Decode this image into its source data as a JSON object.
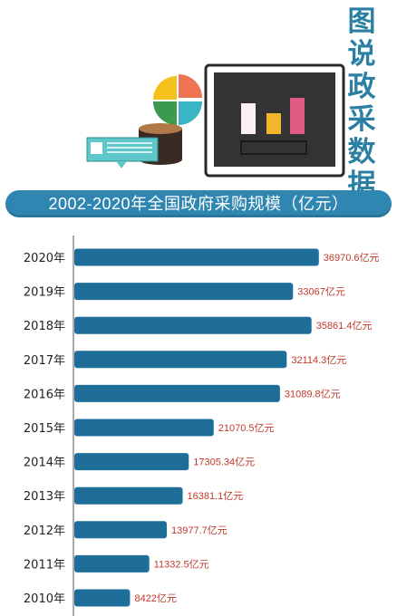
{
  "side_title": [
    "图",
    "说",
    "政",
    "采",
    "数",
    "据"
  ],
  "banner_title": "2002-2020年全国政府采购规模（亿元）",
  "colors": {
    "bar": "#1f6e99",
    "banner": "#2f86b1",
    "value_text": "#c0392b",
    "axis": "#555555"
  },
  "chart_data": {
    "type": "bar",
    "orientation": "horizontal",
    "title": "2002-2020年全国政府采购规模（亿元）",
    "xlabel": "",
    "ylabel": "",
    "categories": [
      "2020年",
      "2019年",
      "2018年",
      "2017年",
      "2016年",
      "2015年",
      "2014年",
      "2013年",
      "2012年",
      "2011年",
      "2010年"
    ],
    "values": [
      36970.6,
      33067,
      35861.4,
      32114.3,
      31089.8,
      21070.5,
      17305.34,
      16381.1,
      13977.7,
      11332.5,
      8422
    ],
    "value_labels": [
      "36970.6亿元",
      "33067亿元",
      "35861.4亿元",
      "32114.3亿元",
      "31089.8亿元",
      "21070.5亿元",
      "17305.34亿元",
      "16381.1亿元",
      "13977.7亿元",
      "11332.5亿元",
      "8422亿元"
    ],
    "xlim": [
      0,
      37000
    ],
    "grid": false
  }
}
